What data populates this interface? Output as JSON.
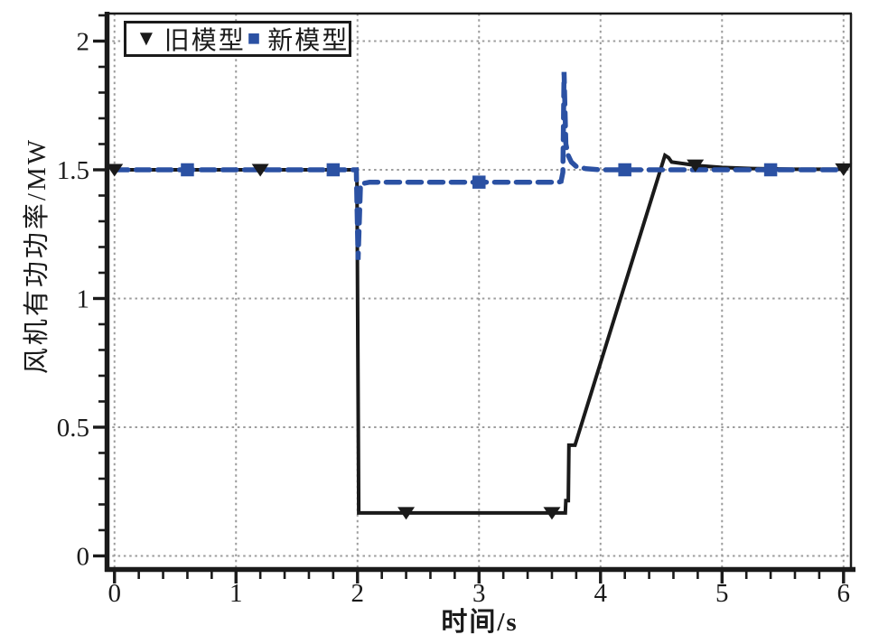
{
  "figure": {
    "background": "#ffffff"
  },
  "chart_data": {
    "type": "line",
    "title": "",
    "xlabel": "时间/s",
    "ylabel": "风机有功功率/MW",
    "xlim": [
      0,
      6
    ],
    "ylim": [
      0,
      2
    ],
    "xticks": [
      0,
      1,
      2,
      3,
      4,
      5,
      6
    ],
    "xtick_labels": [
      "0",
      "1",
      "2",
      "3",
      "4",
      "5",
      "6"
    ],
    "yticks": [
      0,
      0.5,
      1,
      1.5,
      2
    ],
    "ytick_labels": [
      "0",
      "0.5",
      "1",
      "1.5",
      "2"
    ],
    "minor_x_step": 0.2,
    "minor_y_step": 0.1,
    "grid": {
      "show": true,
      "style": "dashed",
      "color": "#9c9c9c",
      "at": "major-ticks"
    },
    "frame": {
      "axis_color": "#1a1a1a"
    },
    "legend": {
      "position": "top-left",
      "items": [
        {
          "label": "旧模型",
          "glyph": "▼",
          "marker": "triangle-down",
          "color": "#1a1a1a"
        },
        {
          "label": "新模型",
          "glyph": "■",
          "marker": "square",
          "color": "#2b51a3"
        }
      ]
    },
    "series": [
      {
        "name": "旧模型",
        "color": "#1a1a1a",
        "line_style": "solid",
        "line_width": 4,
        "marker": "triangle-down",
        "points": [
          [
            0,
            1.5
          ],
          [
            1.995,
            1.5
          ],
          [
            2.01,
            0.167
          ],
          [
            3.71,
            0.167
          ],
          [
            3.715,
            0.215
          ],
          [
            3.735,
            0.215
          ],
          [
            3.74,
            0.43
          ],
          [
            3.79,
            0.43
          ],
          [
            4.53,
            1.556
          ],
          [
            4.56,
            1.547
          ],
          [
            4.585,
            1.53
          ],
          [
            4.68,
            1.524
          ],
          [
            4.8,
            1.516
          ],
          [
            5.0,
            1.509
          ],
          [
            5.25,
            1.505
          ],
          [
            5.6,
            1.502
          ],
          [
            6.0,
            1.502
          ]
        ],
        "marker_points": [
          [
            0,
            1.5
          ],
          [
            1.2,
            1.5
          ],
          [
            2.4,
            0.167
          ],
          [
            3.6,
            0.167
          ],
          [
            4.78,
            1.517
          ],
          [
            6.0,
            1.502
          ]
        ]
      },
      {
        "name": "新模型",
        "color": "#2b51a3",
        "line_style": "dashed",
        "line_width": 5.5,
        "marker": "square",
        "points": [
          [
            0,
            1.5
          ],
          [
            1.99,
            1.5
          ],
          [
            2.005,
            1.15
          ],
          [
            2.025,
            1.445
          ],
          [
            2.1,
            1.452
          ],
          [
            3.655,
            1.452
          ],
          [
            3.675,
            1.455
          ],
          [
            3.69,
            1.49
          ],
          [
            3.7,
            1.88
          ],
          [
            3.715,
            1.6
          ],
          [
            3.735,
            1.555
          ],
          [
            3.76,
            1.53
          ],
          [
            3.8,
            1.513
          ],
          [
            3.88,
            1.504
          ],
          [
            4.0,
            1.5
          ],
          [
            6.0,
            1.5
          ]
        ],
        "marker_points": [
          [
            0.6,
            1.5
          ],
          [
            1.8,
            1.5
          ],
          [
            3.0,
            1.452
          ],
          [
            4.2,
            1.5
          ],
          [
            5.4,
            1.5
          ]
        ]
      }
    ]
  }
}
